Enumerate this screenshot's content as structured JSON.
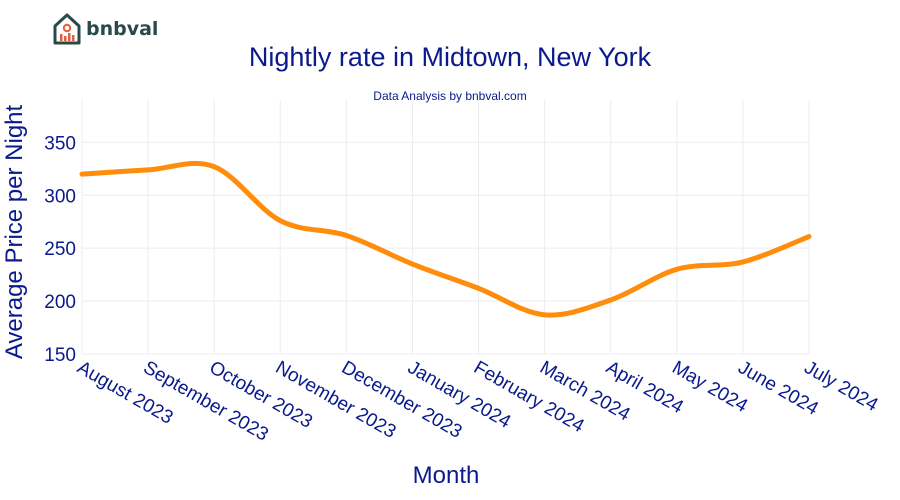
{
  "brand": {
    "name": "bnbval"
  },
  "chart_data": {
    "type": "line",
    "title": "Nightly rate in Midtown, New York",
    "subtitle": "Data Analysis by bnbval.com",
    "xlabel": "Month",
    "ylabel": "Average Price per Night",
    "categories": [
      "August 2023",
      "September 2023",
      "October 2023",
      "November 2023",
      "December 2023",
      "January 2024",
      "February 2024",
      "March 2024",
      "April 2024",
      "May 2024",
      "June 2024",
      "July 2024"
    ],
    "series": [
      {
        "values": [
          320,
          324,
          327,
          276,
          262,
          235,
          212,
          187,
          201,
          230,
          237,
          261
        ]
      }
    ],
    "ylim": [
      150,
      390
    ],
    "yticks": [
      150,
      200,
      250,
      300,
      350
    ],
    "grid": true,
    "line_color": "#ff8c0a"
  }
}
